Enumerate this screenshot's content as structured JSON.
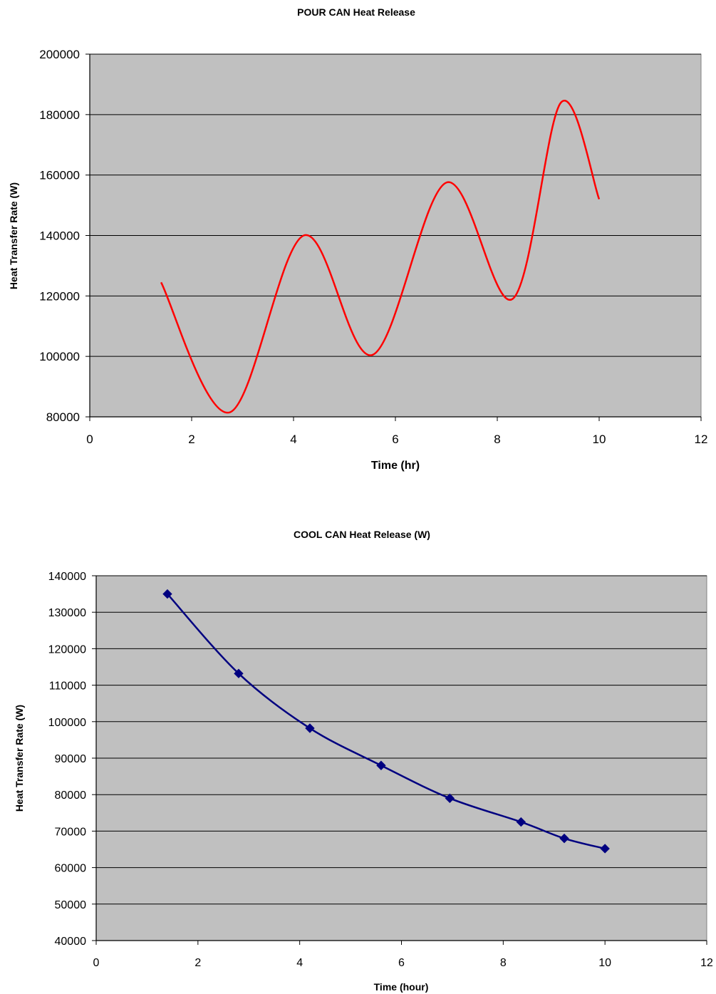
{
  "chart_data": [
    {
      "type": "line",
      "title": "POUR CAN Heat Release",
      "xlabel": "Time (hr)",
      "ylabel": "Heat Transfer Rate (W)",
      "xlim": [
        0,
        12
      ],
      "ylim": [
        80000,
        200000
      ],
      "xticks": [
        "0",
        "2",
        "4",
        "6",
        "8",
        "10",
        "12"
      ],
      "yticks": [
        "80000",
        "100000",
        "120000",
        "140000",
        "160000",
        "180000",
        "200000"
      ],
      "grid": "horizontal",
      "legend": "none",
      "smooth": true,
      "markers": false,
      "series": [
        {
          "color": "#ff0000",
          "x": [
            1.4,
            2.75,
            4.2,
            5.55,
            7.0,
            8.3,
            9.25,
            10.0
          ],
          "y": [
            124500,
            81500,
            140000,
            100500,
            157500,
            119000,
            184000,
            152000
          ]
        }
      ],
      "colors": {
        "plot_background": "#c0c0c0",
        "gridline": "#000000"
      }
    },
    {
      "type": "line",
      "title": "COOL CAN Heat Release (W)",
      "xlabel": "Time (hour)",
      "ylabel": "Heat Transfer Rate (W)",
      "xlim": [
        0,
        12
      ],
      "ylim": [
        40000,
        140000
      ],
      "xticks": [
        "0",
        "2",
        "4",
        "6",
        "8",
        "10",
        "12"
      ],
      "yticks": [
        "40000",
        "50000",
        "60000",
        "70000",
        "80000",
        "90000",
        "100000",
        "110000",
        "120000",
        "130000",
        "140000"
      ],
      "grid": "horizontal",
      "legend": "none",
      "smooth": true,
      "markers": true,
      "marker_shape": "diamond",
      "series": [
        {
          "color": "#000080",
          "x": [
            1.4,
            2.8,
            4.2,
            5.6,
            6.95,
            8.35,
            9.2,
            10.0
          ],
          "y": [
            135000,
            113200,
            98200,
            88000,
            79000,
            72500,
            68000,
            65200
          ]
        }
      ],
      "colors": {
        "plot_background": "#c0c0c0",
        "gridline": "#000000"
      }
    }
  ]
}
